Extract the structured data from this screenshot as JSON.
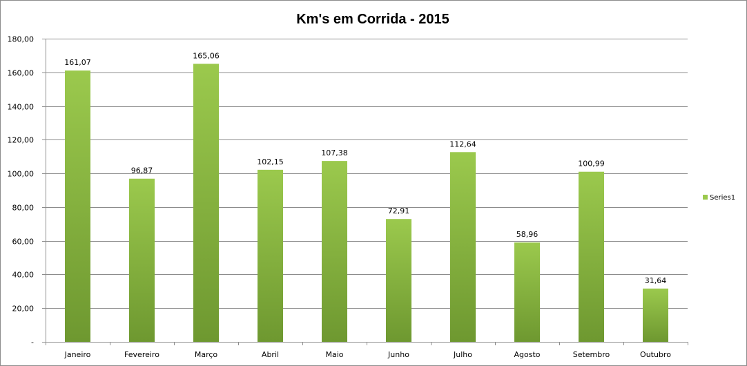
{
  "chart_data": {
    "type": "bar",
    "title": "Km's em Corrida - 2015",
    "categories": [
      "Janeiro",
      "Fevereiro",
      "Março",
      "Abril",
      "Maio",
      "Junho",
      "Julho",
      "Agosto",
      "Setembro",
      "Outubro"
    ],
    "series": [
      {
        "name": "Series1",
        "values": [
          161.07,
          96.87,
          165.06,
          102.15,
          107.38,
          72.91,
          112.64,
          58.96,
          100.99,
          31.64
        ],
        "data_labels": [
          "161,07",
          "96,87",
          "165,06",
          "102,15",
          "107,38",
          "72,91",
          "112,64",
          "58,96",
          "100,99",
          "31,64"
        ]
      }
    ],
    "y_tick_labels": [
      "-",
      "20,00",
      "40,00",
      "60,00",
      "80,00",
      "100,00",
      "120,00",
      "140,00",
      "160,00",
      "180,00"
    ],
    "ylim": [
      0,
      180
    ],
    "y_tick_step": 20,
    "xlabel": "",
    "ylabel": "",
    "grid": true,
    "legend_position": "right",
    "colors": {
      "bar_top": "#9bc94d",
      "bar_bottom": "#6e9830",
      "grid": "#8c8c8c"
    }
  }
}
